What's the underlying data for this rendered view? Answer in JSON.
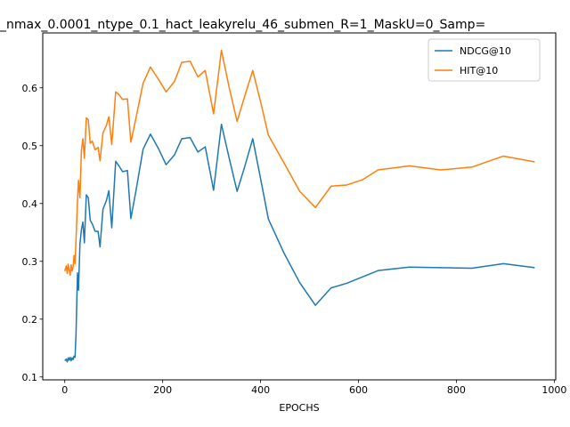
{
  "chart_data": {
    "type": "line",
    "title": "_nmax_0.0001_ntype_0.1_hact_leakyrelu_46_submen_R=1_MaskU=0_Samp=",
    "xlabel": "EPOCHS",
    "ylabel": "",
    "xlim": [
      -45,
      1003
    ],
    "ylim": [
      0.095,
      0.695
    ],
    "xticks": [
      0,
      200,
      400,
      600,
      800,
      1000
    ],
    "yticks": [
      0.1,
      0.2,
      0.3,
      0.4,
      0.5,
      0.6
    ],
    "grid": false,
    "legend_position": "top-right",
    "series": [
      {
        "name": "NDCG@10",
        "color": "#1f77b4",
        "points": [
          [
            0,
            0.128
          ],
          [
            3,
            0.131
          ],
          [
            5,
            0.126
          ],
          [
            7,
            0.133
          ],
          [
            9,
            0.129
          ],
          [
            11,
            0.134
          ],
          [
            13,
            0.128
          ],
          [
            15,
            0.133
          ],
          [
            17,
            0.13
          ],
          [
            19,
            0.136
          ],
          [
            21,
            0.134
          ],
          [
            23,
            0.175
          ],
          [
            26,
            0.28
          ],
          [
            28,
            0.25
          ],
          [
            31,
            0.33
          ],
          [
            34,
            0.355
          ],
          [
            37,
            0.368
          ],
          [
            40,
            0.332
          ],
          [
            44,
            0.415
          ],
          [
            48,
            0.41
          ],
          [
            52,
            0.371
          ],
          [
            56,
            0.365
          ],
          [
            62,
            0.352
          ],
          [
            68,
            0.352
          ],
          [
            72,
            0.325
          ],
          [
            78,
            0.39
          ],
          [
            85,
            0.405
          ],
          [
            90,
            0.422
          ],
          [
            96,
            0.358
          ],
          [
            104,
            0.473
          ],
          [
            110,
            0.466
          ],
          [
            118,
            0.455
          ],
          [
            128,
            0.457
          ],
          [
            135,
            0.374
          ],
          [
            145,
            0.42
          ],
          [
            160,
            0.494
          ],
          [
            175,
            0.52
          ],
          [
            192,
            0.494
          ],
          [
            207,
            0.467
          ],
          [
            224,
            0.484
          ],
          [
            239,
            0.512
          ],
          [
            256,
            0.514
          ],
          [
            272,
            0.489
          ],
          [
            287,
            0.498
          ],
          [
            304,
            0.423
          ],
          [
            320,
            0.537
          ],
          [
            336,
            0.478
          ],
          [
            352,
            0.421
          ],
          [
            367,
            0.462
          ],
          [
            384,
            0.512
          ],
          [
            400,
            0.443
          ],
          [
            416,
            0.373
          ],
          [
            448,
            0.314
          ],
          [
            480,
            0.263
          ],
          [
            512,
            0.224
          ],
          [
            544,
            0.254
          ],
          [
            576,
            0.262
          ],
          [
            608,
            0.273
          ],
          [
            640,
            0.284
          ],
          [
            704,
            0.29
          ],
          [
            768,
            0.289
          ],
          [
            832,
            0.288
          ],
          [
            896,
            0.296
          ],
          [
            960,
            0.289
          ]
        ]
      },
      {
        "name": "HIT@10",
        "color": "#ff7f0e",
        "points": [
          [
            0,
            0.283
          ],
          [
            3,
            0.292
          ],
          [
            5,
            0.279
          ],
          [
            7,
            0.295
          ],
          [
            9,
            0.285
          ],
          [
            11,
            0.276
          ],
          [
            13,
            0.294
          ],
          [
            15,
            0.283
          ],
          [
            17,
            0.29
          ],
          [
            19,
            0.31
          ],
          [
            21,
            0.296
          ],
          [
            23,
            0.338
          ],
          [
            26,
            0.404
          ],
          [
            28,
            0.44
          ],
          [
            31,
            0.41
          ],
          [
            34,
            0.492
          ],
          [
            37,
            0.512
          ],
          [
            40,
            0.478
          ],
          [
            44,
            0.548
          ],
          [
            48,
            0.545
          ],
          [
            52,
            0.504
          ],
          [
            56,
            0.508
          ],
          [
            62,
            0.493
          ],
          [
            68,
            0.497
          ],
          [
            72,
            0.474
          ],
          [
            78,
            0.522
          ],
          [
            85,
            0.535
          ],
          [
            90,
            0.55
          ],
          [
            96,
            0.502
          ],
          [
            104,
            0.593
          ],
          [
            110,
            0.589
          ],
          [
            118,
            0.58
          ],
          [
            128,
            0.581
          ],
          [
            135,
            0.506
          ],
          [
            145,
            0.546
          ],
          [
            160,
            0.608
          ],
          [
            175,
            0.636
          ],
          [
            192,
            0.614
          ],
          [
            207,
            0.593
          ],
          [
            224,
            0.611
          ],
          [
            239,
            0.644
          ],
          [
            256,
            0.646
          ],
          [
            272,
            0.619
          ],
          [
            287,
            0.63
          ],
          [
            304,
            0.555
          ],
          [
            320,
            0.665
          ],
          [
            336,
            0.6
          ],
          [
            352,
            0.542
          ],
          [
            367,
            0.584
          ],
          [
            384,
            0.63
          ],
          [
            400,
            0.576
          ],
          [
            416,
            0.518
          ],
          [
            448,
            0.47
          ],
          [
            480,
            0.421
          ],
          [
            512,
            0.393
          ],
          [
            544,
            0.43
          ],
          [
            576,
            0.432
          ],
          [
            608,
            0.441
          ],
          [
            640,
            0.458
          ],
          [
            704,
            0.465
          ],
          [
            768,
            0.458
          ],
          [
            832,
            0.463
          ],
          [
            896,
            0.482
          ],
          [
            960,
            0.472
          ]
        ]
      }
    ]
  }
}
